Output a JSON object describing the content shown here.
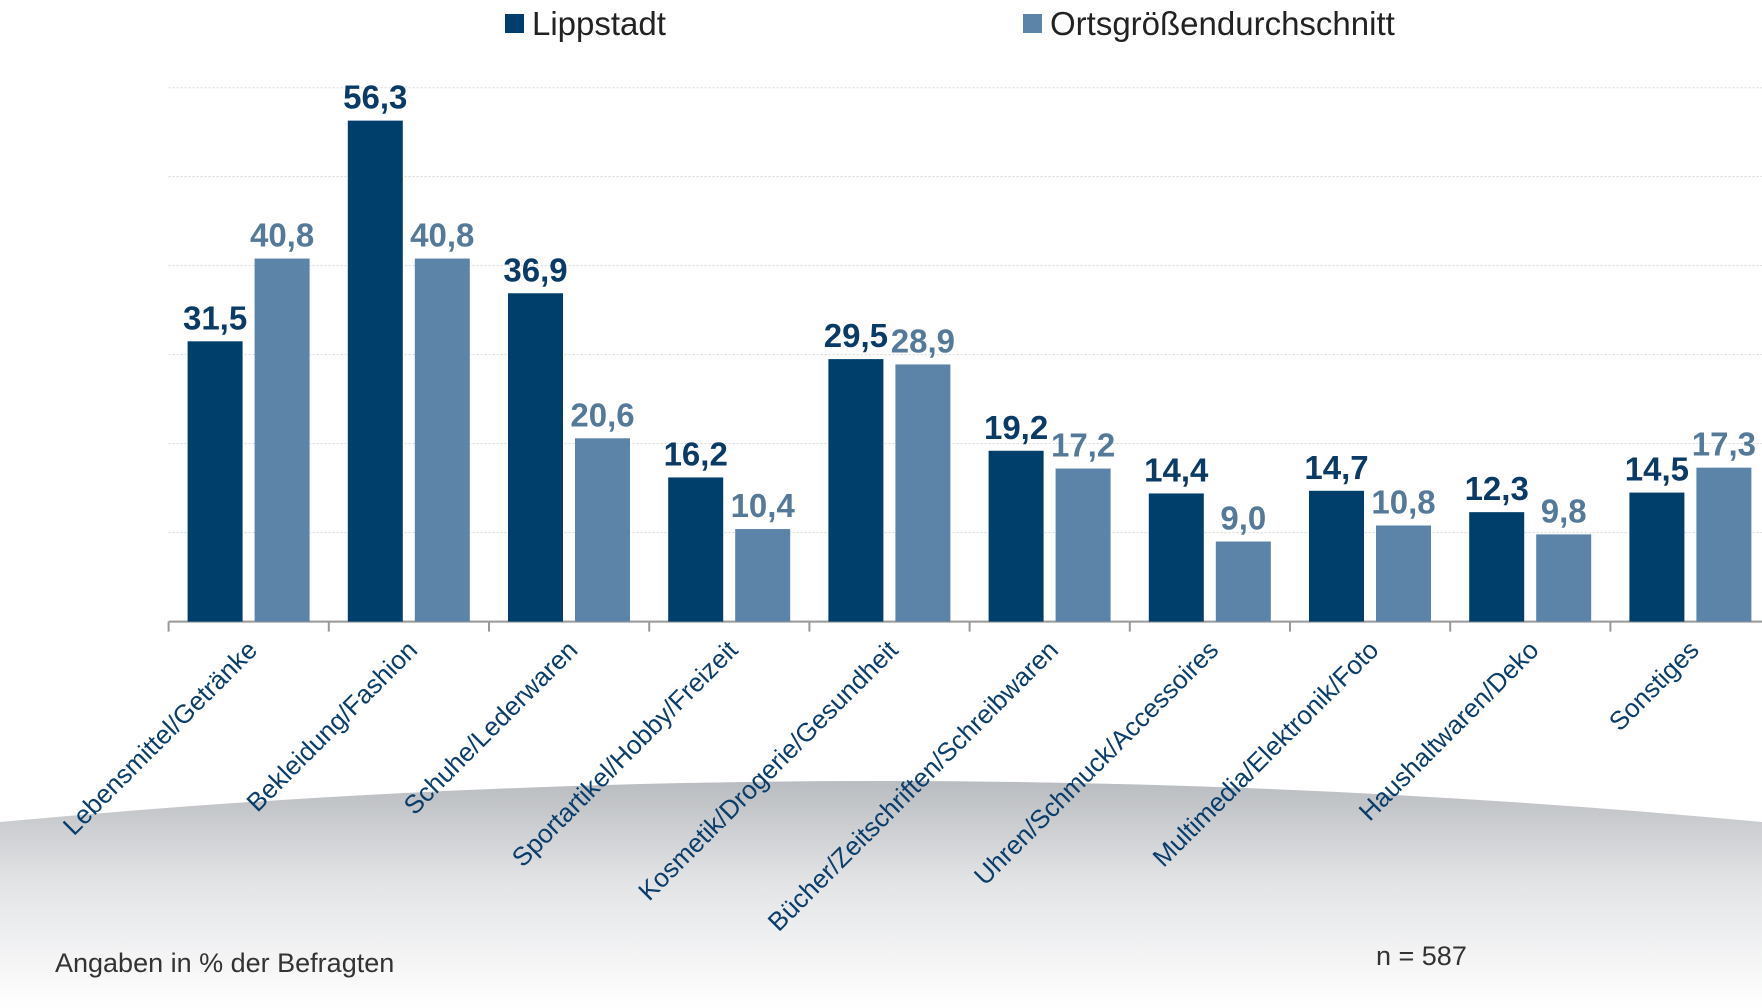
{
  "chart_data": {
    "type": "bar",
    "categories": [
      "Lebensmittel/Getränke",
      "Bekleidung/Fashion",
      "Schuhe/Lederwaren",
      "Sportartikel/Hobby/Freizeit",
      "Kosmetik/Drogerie/Gesundheit",
      "Bücher/Zeitschriften/Schreibwaren",
      "Uhren/Schmuck/Accessoires",
      "Multimedia/Elektronik/Foto",
      "Haushaltwaren/Deko",
      "Sonstiges"
    ],
    "series": [
      {
        "name": "Lippstadt",
        "color": "#003f6b",
        "label_color": "#0a3a66",
        "values": [
          31.5,
          56.3,
          36.9,
          16.2,
          29.5,
          19.2,
          14.4,
          14.7,
          12.3,
          14.5
        ],
        "value_labels": [
          "31,5",
          "56,3",
          "36,9",
          "16,2",
          "29,5",
          "19,2",
          "14,4",
          "14,7",
          "12,3",
          "14,5"
        ]
      },
      {
        "name": "Ortsgrößendurchschnitt",
        "color": "#5b84a8",
        "label_color": "#557a99",
        "values": [
          40.8,
          40.8,
          20.6,
          10.4,
          28.9,
          17.2,
          9.0,
          10.8,
          9.8,
          17.3
        ],
        "value_labels": [
          "40,8",
          "40,8",
          "20,6",
          "10,4",
          "28,9",
          "17,2",
          "9,0",
          "10,8",
          "9,8",
          "17,3"
        ]
      }
    ],
    "ylim": [
      0,
      60
    ],
    "yticks": [
      0,
      10,
      20,
      30,
      40,
      50,
      60
    ],
    "grid": true,
    "legend": "top",
    "notes": [
      "Angaben in % der Befragten",
      "n = 587"
    ]
  }
}
